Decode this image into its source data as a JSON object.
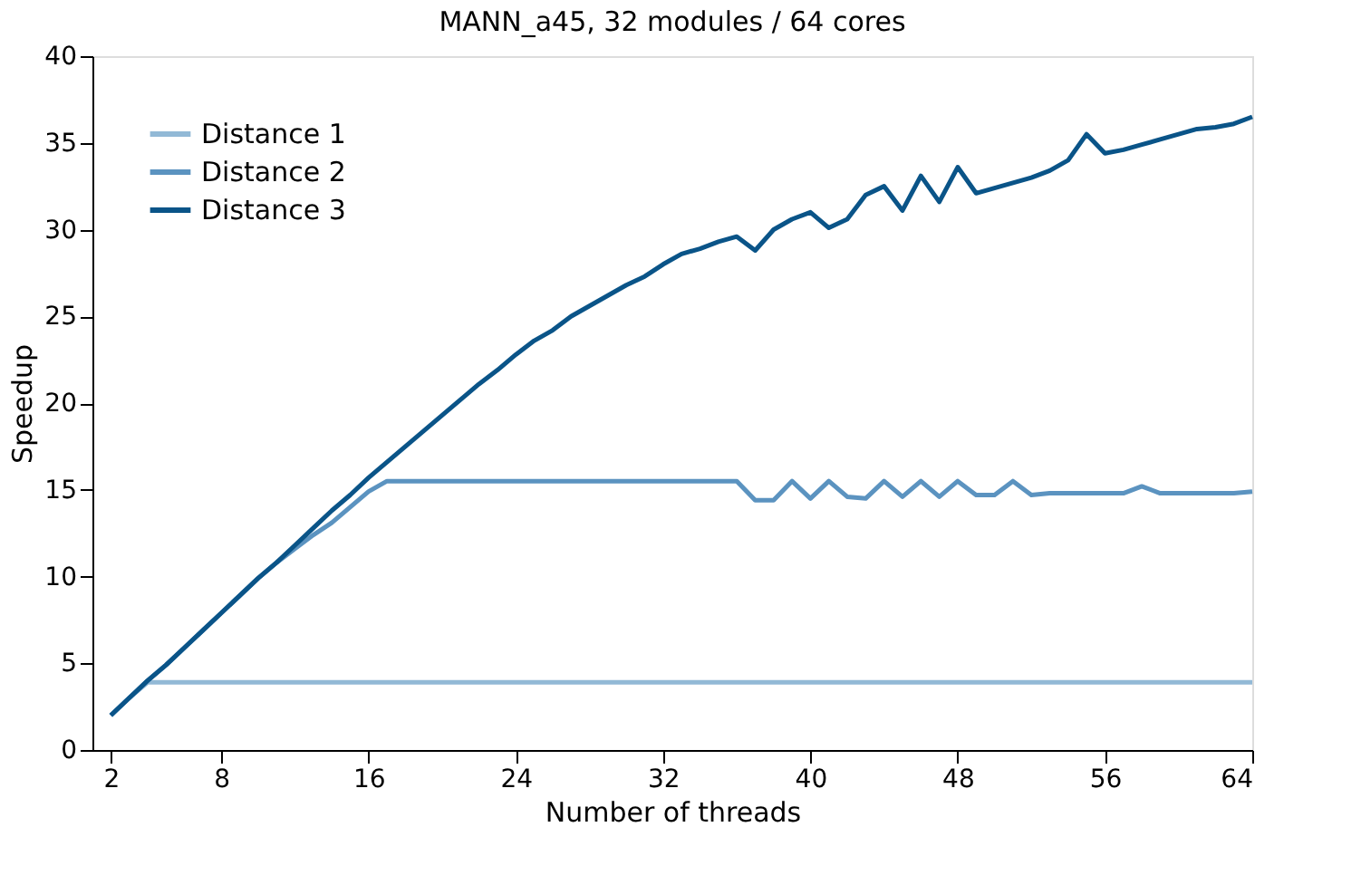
{
  "chart_data": {
    "type": "line",
    "title": "MANN_a45, 32 modules / 64 cores",
    "xlabel": "Number of threads",
    "ylabel": "Speedup",
    "x": [
      2,
      3,
      4,
      5,
      6,
      7,
      8,
      9,
      10,
      11,
      12,
      13,
      14,
      15,
      16,
      17,
      18,
      19,
      20,
      21,
      22,
      23,
      24,
      25,
      26,
      27,
      28,
      29,
      30,
      31,
      32,
      33,
      34,
      35,
      36,
      37,
      38,
      39,
      40,
      41,
      42,
      43,
      44,
      45,
      46,
      47,
      48,
      49,
      50,
      51,
      52,
      53,
      54,
      55,
      56,
      57,
      58,
      59,
      60,
      61,
      62,
      63,
      64
    ],
    "series": [
      {
        "name": "Distance 1",
        "color": "#92b9d6",
        "values": [
          2,
          3,
          3.9,
          3.9,
          3.9,
          3.9,
          3.9,
          3.9,
          3.9,
          3.9,
          3.9,
          3.9,
          3.9,
          3.9,
          3.9,
          3.9,
          3.9,
          3.9,
          3.9,
          3.9,
          3.9,
          3.9,
          3.9,
          3.9,
          3.9,
          3.9,
          3.9,
          3.9,
          3.9,
          3.9,
          3.9,
          3.9,
          3.9,
          3.9,
          3.9,
          3.9,
          3.9,
          3.9,
          3.9,
          3.9,
          3.9,
          3.9,
          3.9,
          3.9,
          3.9,
          3.9,
          3.9,
          3.9,
          3.9,
          3.9,
          3.9,
          3.9,
          3.9,
          3.9,
          3.9,
          3.9,
          3.9,
          3.9,
          3.9,
          3.9,
          3.9,
          3.9,
          3.9
        ]
      },
      {
        "name": "Distance 2",
        "color": "#5b93c0",
        "values": [
          2,
          3,
          4,
          4.9,
          5.9,
          6.9,
          7.9,
          8.9,
          9.9,
          10.8,
          11.6,
          12.4,
          13.1,
          14.0,
          14.9,
          15.5,
          15.5,
          15.5,
          15.5,
          15.5,
          15.5,
          15.5,
          15.5,
          15.5,
          15.5,
          15.5,
          15.5,
          15.5,
          15.5,
          15.5,
          15.5,
          15.5,
          15.5,
          15.5,
          15.5,
          14.4,
          14.4,
          15.5,
          14.5,
          15.5,
          14.6,
          14.5,
          15.5,
          14.6,
          15.5,
          14.6,
          15.5,
          14.7,
          14.7,
          15.5,
          14.7,
          14.8,
          14.8,
          14.8,
          14.8,
          14.8,
          15.2,
          14.8,
          14.8,
          14.8,
          14.8,
          14.8,
          14.9
        ]
      },
      {
        "name": "Distance 3",
        "color": "#0a5488",
        "values": [
          2,
          3,
          4,
          4.9,
          5.9,
          6.9,
          7.9,
          8.9,
          9.9,
          10.8,
          11.8,
          12.8,
          13.8,
          14.7,
          15.7,
          16.6,
          17.5,
          18.4,
          19.3,
          20.2,
          21.1,
          21.9,
          22.8,
          23.6,
          24.2,
          25.0,
          25.6,
          26.2,
          26.8,
          27.3,
          28.0,
          28.6,
          28.9,
          29.3,
          29.6,
          28.8,
          30.0,
          30.6,
          31.0,
          30.1,
          30.6,
          32.0,
          32.5,
          31.1,
          33.1,
          31.6,
          33.6,
          32.1,
          32.4,
          32.7,
          33.0,
          33.4,
          34.0,
          35.5,
          34.4,
          34.6,
          34.9,
          35.2,
          35.5,
          35.8,
          35.9,
          36.1,
          36.5
        ]
      }
    ],
    "xlim": [
      1,
      64
    ],
    "xticks": [
      2,
      8,
      16,
      24,
      32,
      40,
      48,
      56,
      64
    ],
    "ylim": [
      0,
      40
    ],
    "yticks": [
      0,
      5,
      10,
      15,
      20,
      25,
      30,
      35,
      40
    ],
    "grid": false,
    "legend": "top left",
    "line_style": "solid",
    "marker": "none"
  }
}
